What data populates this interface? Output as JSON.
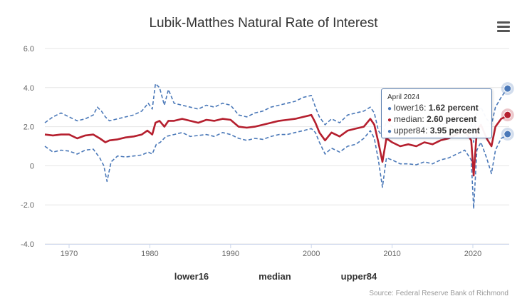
{
  "title": "Lubik-Matthes Natural Rate of Interest",
  "menu_icon": "hamburger-menu-icon",
  "source": "Source: Federal Reserve Bank of Richmond",
  "colors": {
    "lower16": "#4a78b8",
    "median": "#b51f2e",
    "upper84": "#4a78b8",
    "grid": "#e6e6e6"
  },
  "tooltip": {
    "header": "April 2024",
    "rows": [
      {
        "label": "lower16",
        "value": "1.62 percent",
        "color": "#4a78b8"
      },
      {
        "label": "median",
        "value": "2.60 percent",
        "color": "#b51f2e"
      },
      {
        "label": "upper84",
        "value": "3.95 percent",
        "color": "#4a78b8"
      }
    ]
  },
  "chart_data": {
    "type": "line",
    "title": "Lubik-Matthes Natural Rate of Interest",
    "ylim": [
      -4,
      6
    ],
    "xlim": [
      1967,
      2024.5
    ],
    "y_ticks": [
      "-4.0",
      "-2.0",
      "0",
      "2.0",
      "4.0",
      "6.0"
    ],
    "x_ticks": [
      "1970",
      "1980",
      "1990",
      "2000",
      "2010",
      "2020"
    ],
    "grid": true,
    "legend_position": "bottom",
    "series": [
      {
        "name": "lower16",
        "style": "dashed",
        "color": "#4a78b8",
        "points": [
          [
            1967,
            1.0
          ],
          [
            1968,
            0.7
          ],
          [
            1969,
            0.8
          ],
          [
            1970,
            0.75
          ],
          [
            1971,
            0.6
          ],
          [
            1972,
            0.8
          ],
          [
            1973,
            0.85
          ],
          [
            1973.8,
            0.4
          ],
          [
            1974.3,
            0.0
          ],
          [
            1974.7,
            -0.8
          ],
          [
            1975.2,
            0.2
          ],
          [
            1976,
            0.5
          ],
          [
            1977,
            0.45
          ],
          [
            1978,
            0.5
          ],
          [
            1979,
            0.55
          ],
          [
            1979.8,
            0.7
          ],
          [
            1980.3,
            0.6
          ],
          [
            1980.8,
            1.1
          ],
          [
            1981.3,
            1.2
          ],
          [
            1982,
            1.5
          ],
          [
            1983,
            1.6
          ],
          [
            1984,
            1.7
          ],
          [
            1985,
            1.5
          ],
          [
            1986,
            1.55
          ],
          [
            1987,
            1.6
          ],
          [
            1988,
            1.5
          ],
          [
            1989,
            1.7
          ],
          [
            1990,
            1.6
          ],
          [
            1991,
            1.4
          ],
          [
            1992,
            1.3
          ],
          [
            1993,
            1.4
          ],
          [
            1994,
            1.35
          ],
          [
            1995,
            1.5
          ],
          [
            1996,
            1.6
          ],
          [
            1997,
            1.6
          ],
          [
            1998,
            1.7
          ],
          [
            1999,
            1.8
          ],
          [
            2000,
            1.9
          ],
          [
            2000.5,
            1.7
          ],
          [
            2001,
            1.2
          ],
          [
            2001.7,
            0.6
          ],
          [
            2002.5,
            0.9
          ],
          [
            2003.5,
            0.7
          ],
          [
            2004.5,
            1.0
          ],
          [
            2005.5,
            1.1
          ],
          [
            2006.5,
            1.4
          ],
          [
            2007.3,
            1.8
          ],
          [
            2007.8,
            1.4
          ],
          [
            2008.3,
            0.3
          ],
          [
            2008.8,
            -1.1
          ],
          [
            2009.3,
            0.4
          ],
          [
            2010,
            0.3
          ],
          [
            2011,
            0.1
          ],
          [
            2012,
            0.1
          ],
          [
            2013,
            0.05
          ],
          [
            2014,
            0.2
          ],
          [
            2015,
            0.1
          ],
          [
            2016,
            0.3
          ],
          [
            2017,
            0.4
          ],
          [
            2018,
            0.6
          ],
          [
            2019,
            0.8
          ],
          [
            2019.8,
            0.3
          ],
          [
            2020.1,
            -2.2
          ],
          [
            2020.5,
            0.8
          ],
          [
            2021,
            1.2
          ],
          [
            2021.7,
            0.4
          ],
          [
            2022.3,
            -0.4
          ],
          [
            2022.8,
            0.8
          ],
          [
            2023.5,
            1.4
          ],
          [
            2024,
            1.5
          ],
          [
            2024.3,
            1.62
          ]
        ]
      },
      {
        "name": "median",
        "style": "solid",
        "color": "#b51f2e",
        "points": [
          [
            1967,
            1.6
          ],
          [
            1968,
            1.55
          ],
          [
            1969,
            1.6
          ],
          [
            1970,
            1.6
          ],
          [
            1971,
            1.4
          ],
          [
            1972,
            1.55
          ],
          [
            1973,
            1.6
          ],
          [
            1973.8,
            1.4
          ],
          [
            1974.5,
            1.2
          ],
          [
            1975,
            1.3
          ],
          [
            1976,
            1.35
          ],
          [
            1977,
            1.45
          ],
          [
            1978,
            1.5
          ],
          [
            1979,
            1.6
          ],
          [
            1979.7,
            1.8
          ],
          [
            1980.3,
            1.6
          ],
          [
            1980.7,
            2.2
          ],
          [
            1981.2,
            2.3
          ],
          [
            1981.8,
            2.0
          ],
          [
            1982.3,
            2.3
          ],
          [
            1983,
            2.3
          ],
          [
            1984,
            2.4
          ],
          [
            1985,
            2.3
          ],
          [
            1986,
            2.2
          ],
          [
            1987,
            2.35
          ],
          [
            1988,
            2.3
          ],
          [
            1989,
            2.4
          ],
          [
            1990,
            2.35
          ],
          [
            1991,
            2.0
          ],
          [
            1992,
            1.95
          ],
          [
            1993,
            2.0
          ],
          [
            1994,
            2.1
          ],
          [
            1995,
            2.2
          ],
          [
            1996,
            2.3
          ],
          [
            1997,
            2.35
          ],
          [
            1998,
            2.4
          ],
          [
            1999,
            2.5
          ],
          [
            2000,
            2.6
          ],
          [
            2000.5,
            2.2
          ],
          [
            2001,
            1.7
          ],
          [
            2001.7,
            1.3
          ],
          [
            2002.5,
            1.7
          ],
          [
            2003.5,
            1.5
          ],
          [
            2004.5,
            1.8
          ],
          [
            2005.5,
            1.9
          ],
          [
            2006.5,
            2.0
          ],
          [
            2007.3,
            2.4
          ],
          [
            2007.8,
            2.1
          ],
          [
            2008.3,
            1.2
          ],
          [
            2008.8,
            0.2
          ],
          [
            2009.3,
            1.4
          ],
          [
            2010,
            1.2
          ],
          [
            2011,
            1.0
          ],
          [
            2012,
            1.1
          ],
          [
            2013,
            1.0
          ],
          [
            2014,
            1.2
          ],
          [
            2015,
            1.1
          ],
          [
            2016,
            1.3
          ],
          [
            2017,
            1.4
          ],
          [
            2018,
            1.6
          ],
          [
            2019,
            1.8
          ],
          [
            2019.8,
            1.3
          ],
          [
            2020.1,
            -0.5
          ],
          [
            2020.5,
            1.8
          ],
          [
            2021,
            2.1
          ],
          [
            2021.7,
            1.4
          ],
          [
            2022.3,
            1.0
          ],
          [
            2022.8,
            2.0
          ],
          [
            2023.5,
            2.4
          ],
          [
            2024,
            2.5
          ],
          [
            2024.3,
            2.6
          ]
        ]
      },
      {
        "name": "upper84",
        "style": "dashed",
        "color": "#4a78b8",
        "points": [
          [
            1967,
            2.2
          ],
          [
            1968,
            2.5
          ],
          [
            1969,
            2.7
          ],
          [
            1970,
            2.5
          ],
          [
            1971,
            2.3
          ],
          [
            1972,
            2.4
          ],
          [
            1973,
            2.6
          ],
          [
            1973.5,
            3.0
          ],
          [
            1974,
            2.8
          ],
          [
            1974.5,
            2.5
          ],
          [
            1975,
            2.3
          ],
          [
            1976,
            2.4
          ],
          [
            1977,
            2.5
          ],
          [
            1978,
            2.6
          ],
          [
            1979,
            2.8
          ],
          [
            1979.8,
            3.2
          ],
          [
            1980.3,
            2.9
          ],
          [
            1980.7,
            4.2
          ],
          [
            1981.2,
            4.0
          ],
          [
            1981.8,
            3.1
          ],
          [
            1982.3,
            3.9
          ],
          [
            1983,
            3.2
          ],
          [
            1984,
            3.1
          ],
          [
            1985,
            3.0
          ],
          [
            1986,
            2.9
          ],
          [
            1987,
            3.1
          ],
          [
            1988,
            3.0
          ],
          [
            1989,
            3.2
          ],
          [
            1990,
            3.1
          ],
          [
            1991,
            2.6
          ],
          [
            1992,
            2.5
          ],
          [
            1993,
            2.7
          ],
          [
            1994,
            2.8
          ],
          [
            1995,
            3.0
          ],
          [
            1996,
            3.1
          ],
          [
            1997,
            3.2
          ],
          [
            1998,
            3.3
          ],
          [
            1999,
            3.5
          ],
          [
            2000,
            3.6
          ],
          [
            2000.5,
            3.0
          ],
          [
            2001,
            2.5
          ],
          [
            2001.7,
            2.1
          ],
          [
            2002.5,
            2.4
          ],
          [
            2003.5,
            2.2
          ],
          [
            2004.5,
            2.6
          ],
          [
            2005.5,
            2.7
          ],
          [
            2006.5,
            2.8
          ],
          [
            2007.3,
            3.0
          ],
          [
            2007.8,
            2.7
          ],
          [
            2008.3,
            1.8
          ],
          [
            2008.8,
            1.5
          ],
          [
            2009.3,
            2.3
          ],
          [
            2010,
            2.0
          ],
          [
            2011,
            1.8
          ],
          [
            2012,
            1.9
          ],
          [
            2013,
            1.8
          ],
          [
            2014,
            2.0
          ],
          [
            2015,
            1.9
          ],
          [
            2016,
            2.1
          ],
          [
            2017,
            2.2
          ],
          [
            2018,
            2.4
          ],
          [
            2019,
            2.6
          ],
          [
            2019.8,
            2.2
          ],
          [
            2020.1,
            1.2
          ],
          [
            2020.5,
            2.7
          ],
          [
            2021,
            3.0
          ],
          [
            2021.7,
            2.4
          ],
          [
            2022.3,
            2.1
          ],
          [
            2022.8,
            3.0
          ],
          [
            2023.5,
            3.5
          ],
          [
            2024,
            3.8
          ],
          [
            2024.3,
            3.95
          ]
        ]
      }
    ]
  },
  "legend": {
    "items": [
      "lower16",
      "median",
      "upper84"
    ]
  }
}
